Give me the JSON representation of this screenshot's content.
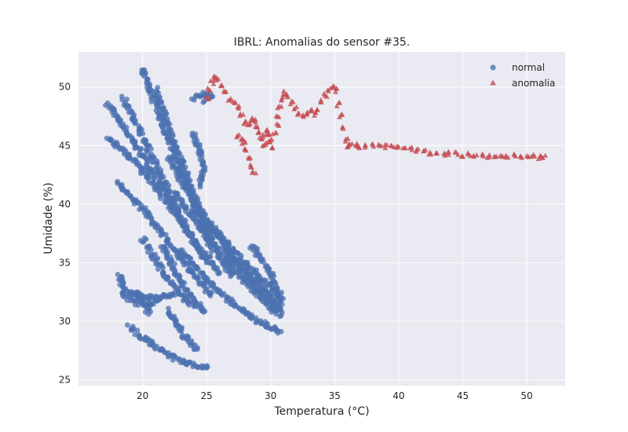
{
  "chart_data": {
    "type": "scatter",
    "title": "IBRL: Anomalias do sensor #35.",
    "xlabel": "Temperatura (°C)",
    "ylabel": "Umidade (%)",
    "xlim": [
      15,
      53
    ],
    "ylim": [
      24.5,
      53
    ],
    "xticks": [
      20,
      25,
      30,
      35,
      40,
      45,
      50
    ],
    "yticks": [
      25,
      30,
      35,
      40,
      45,
      50
    ],
    "grid": true,
    "legend_position": "top-right",
    "colors": {
      "background": "#eaeaf2",
      "grid": "#ffffff",
      "normal": "#4c72b0",
      "anomalia": "#c44e52"
    },
    "series": [
      {
        "name": "normal",
        "marker": "circle",
        "color": "#4c72b0",
        "segments": [
          [
            [
              17.3,
              48.6
            ],
            [
              18.0,
              47.4
            ],
            [
              18.8,
              46.0
            ],
            [
              19.6,
              44.8
            ],
            [
              20.4,
              43.5
            ],
            [
              21.2,
              42.0
            ],
            [
              22.0,
              40.5
            ],
            [
              22.8,
              39.0
            ],
            [
              23.6,
              37.5
            ],
            [
              24.4,
              36.0
            ],
            [
              25.0,
              35.0
            ]
          ],
          [
            [
              17.2,
              45.6
            ],
            [
              18.0,
              45.0
            ],
            [
              19.0,
              44.0
            ],
            [
              20.0,
              42.8
            ],
            [
              21.0,
              41.5
            ],
            [
              22.0,
              40.0
            ],
            [
              23.0,
              38.5
            ],
            [
              24.0,
              37.0
            ],
            [
              25.0,
              35.5
            ],
            [
              26.0,
              34.0
            ]
          ],
          [
            [
              18.0,
              41.8
            ],
            [
              19.0,
              40.8
            ],
            [
              20.0,
              39.6
            ],
            [
              21.0,
              38.2
            ],
            [
              22.0,
              36.8
            ],
            [
              23.0,
              35.4
            ],
            [
              24.0,
              34.0
            ],
            [
              25.0,
              32.8
            ],
            [
              25.4,
              32.0
            ]
          ],
          [
            [
              18.5,
              49.0
            ],
            [
              19.4,
              47.2
            ],
            [
              20.2,
              45.3
            ],
            [
              21.0,
              43.4
            ],
            [
              21.8,
              41.6
            ],
            [
              22.6,
              39.8
            ],
            [
              23.4,
              38.0
            ]
          ],
          [
            [
              20.0,
              51.6
            ],
            [
              20.5,
              50.0
            ],
            [
              21.0,
              48.5
            ],
            [
              21.5,
              47.0
            ],
            [
              22.0,
              45.6
            ],
            [
              22.5,
              44.2
            ],
            [
              23.0,
              42.8
            ],
            [
              23.5,
              41.4
            ],
            [
              24.0,
              40.0
            ],
            [
              24.5,
              38.6
            ],
            [
              25.0,
              37.2
            ],
            [
              25.5,
              36.0
            ]
          ],
          [
            [
              21.0,
              49.8
            ],
            [
              21.6,
              48.0
            ],
            [
              22.2,
              46.2
            ],
            [
              22.8,
              44.4
            ],
            [
              23.4,
              42.6
            ],
            [
              24.0,
              40.8
            ],
            [
              24.6,
              39.0
            ],
            [
              25.2,
              37.4
            ],
            [
              25.8,
              36.0
            ],
            [
              26.4,
              34.8
            ],
            [
              27.0,
              33.8
            ]
          ],
          [
            [
              22.0,
              44.0
            ],
            [
              22.8,
              42.5
            ],
            [
              23.6,
              41.0
            ],
            [
              24.4,
              39.6
            ],
            [
              25.2,
              38.3
            ],
            [
              26.0,
              37.0
            ],
            [
              26.8,
              35.8
            ],
            [
              27.6,
              34.6
            ],
            [
              28.4,
              33.5
            ],
            [
              29.2,
              32.5
            ],
            [
              30.0,
              31.6
            ],
            [
              30.8,
              30.8
            ]
          ],
          [
            [
              22.5,
              41.0
            ],
            [
              23.4,
              39.6
            ],
            [
              24.3,
              38.3
            ],
            [
              25.2,
              37.0
            ],
            [
              26.1,
              35.8
            ],
            [
              27.0,
              34.6
            ],
            [
              27.9,
              33.5
            ],
            [
              28.8,
              32.5
            ],
            [
              29.7,
              31.5
            ],
            [
              30.6,
              30.6
            ]
          ],
          [
            [
              24.0,
              40.0
            ],
            [
              25.0,
              38.6
            ],
            [
              26.0,
              37.4
            ],
            [
              27.0,
              36.2
            ],
            [
              28.0,
              35.0
            ],
            [
              29.0,
              33.9
            ],
            [
              30.0,
              32.9
            ],
            [
              31.0,
              32.0
            ]
          ],
          [
            [
              23.0,
              36.0
            ],
            [
              24.0,
              34.8
            ],
            [
              25.0,
              33.6
            ],
            [
              26.0,
              32.6
            ],
            [
              27.0,
              31.6
            ],
            [
              28.0,
              30.7
            ],
            [
              29.0,
              30.0
            ],
            [
              30.0,
              29.4
            ],
            [
              30.8,
              29.1
            ]
          ],
          [
            [
              18.2,
              34.0
            ],
            [
              18.4,
              33.0
            ],
            [
              18.8,
              32.5
            ],
            [
              19.5,
              32.2
            ],
            [
              20.2,
              32.0
            ],
            [
              21.0,
              32.0
            ],
            [
              21.8,
              32.1
            ],
            [
              22.6,
              32.4
            ]
          ],
          [
            [
              18.4,
              32.5
            ],
            [
              18.8,
              32.0
            ],
            [
              19.4,
              31.6
            ],
            [
              20.0,
              31.4
            ],
            [
              20.8,
              31.6
            ],
            [
              21.6,
              31.9
            ]
          ],
          [
            [
              19.5,
              32.6
            ],
            [
              19.9,
              31.8
            ],
            [
              20.3,
              31.2
            ],
            [
              20.5,
              30.5
            ]
          ],
          [
            [
              19.0,
              29.5
            ],
            [
              19.8,
              28.8
            ],
            [
              20.6,
              28.2
            ],
            [
              21.4,
              27.6
            ],
            [
              22.2,
              27.0
            ],
            [
              23.0,
              26.6
            ],
            [
              23.8,
              26.3
            ],
            [
              24.5,
              26.1
            ],
            [
              25.2,
              26.0
            ]
          ],
          [
            [
              22.0,
              31.0
            ],
            [
              22.6,
              29.8
            ],
            [
              23.2,
              28.8
            ],
            [
              23.8,
              28.0
            ],
            [
              24.4,
              27.6
            ]
          ],
          [
            [
              21.5,
              36.5
            ],
            [
              22.2,
              35.0
            ],
            [
              22.9,
              33.6
            ],
            [
              23.6,
              32.4
            ],
            [
              24.3,
              31.4
            ],
            [
              25.0,
              30.6
            ]
          ],
          [
            [
              20.0,
              37.0
            ],
            [
              20.8,
              35.6
            ],
            [
              21.6,
              34.2
            ],
            [
              22.4,
              33.0
            ],
            [
              23.2,
              32.0
            ],
            [
              24.0,
              31.2
            ]
          ],
          [
            [
              28.5,
              36.5
            ],
            [
              29.2,
              35.4
            ],
            [
              29.9,
              34.3
            ],
            [
              30.4,
              33.0
            ],
            [
              30.7,
              31.6
            ],
            [
              30.8,
              30.4
            ]
          ],
          [
            [
              26.5,
              36.0
            ],
            [
              27.4,
              35.0
            ],
            [
              28.3,
              34.0
            ],
            [
              29.2,
              33.0
            ],
            [
              30.1,
              32.0
            ],
            [
              30.8,
              31.0
            ]
          ],
          [
            [
              24.0,
              49.0
            ],
            [
              24.5,
              49.4
            ],
            [
              25.0,
              49.5
            ],
            [
              25.3,
              49.0
            ],
            [
              24.8,
              48.8
            ]
          ],
          [
            [
              24.0,
              46.0
            ],
            [
              24.5,
              44.5
            ],
            [
              24.8,
              43.0
            ],
            [
              24.4,
              41.5
            ]
          ]
        ]
      },
      {
        "name": "anomalia",
        "marker": "triangle",
        "color": "#c44e52",
        "points": [
          [
            25.0,
            49.0
          ],
          [
            25.2,
            49.8
          ],
          [
            25.4,
            50.4
          ],
          [
            25.6,
            50.8
          ],
          [
            25.9,
            50.6
          ],
          [
            26.2,
            50.2
          ],
          [
            26.5,
            49.6
          ],
          [
            26.8,
            49.0
          ],
          [
            27.1,
            48.6
          ],
          [
            27.4,
            48.2
          ],
          [
            27.7,
            47.6
          ],
          [
            28.0,
            47.0
          ],
          [
            28.3,
            46.8
          ],
          [
            28.5,
            47.3
          ],
          [
            28.7,
            47.1
          ],
          [
            28.9,
            46.6
          ],
          [
            29.1,
            46.0
          ],
          [
            29.3,
            45.5
          ],
          [
            29.5,
            45.8
          ],
          [
            29.7,
            46.3
          ],
          [
            29.9,
            45.9
          ],
          [
            30.1,
            45.4
          ],
          [
            30.3,
            46.0
          ],
          [
            30.5,
            46.8
          ],
          [
            30.6,
            47.6
          ],
          [
            30.7,
            48.3
          ],
          [
            30.9,
            49.0
          ],
          [
            31.1,
            49.5
          ],
          [
            31.3,
            49.2
          ],
          [
            31.6,
            48.7
          ],
          [
            31.9,
            48.2
          ],
          [
            32.2,
            47.8
          ],
          [
            32.5,
            47.5
          ],
          [
            32.8,
            47.8
          ],
          [
            33.1,
            48.1
          ],
          [
            33.4,
            47.7
          ],
          [
            33.7,
            48.2
          ],
          [
            34.0,
            48.8
          ],
          [
            34.3,
            49.3
          ],
          [
            34.6,
            49.8
          ],
          [
            34.9,
            50.1
          ],
          [
            35.1,
            49.7
          ],
          [
            35.3,
            48.5
          ],
          [
            35.5,
            47.5
          ],
          [
            35.7,
            46.5
          ],
          [
            35.9,
            45.5
          ],
          [
            36.0,
            44.9
          ],
          [
            36.3,
            45.2
          ],
          [
            36.6,
            45.0
          ],
          [
            37.0,
            44.9
          ],
          [
            37.5,
            45.0
          ],
          [
            38.0,
            45.0
          ],
          [
            38.5,
            45.0
          ],
          [
            39.0,
            44.9
          ],
          [
            39.5,
            44.9
          ],
          [
            40.0,
            44.8
          ],
          [
            40.5,
            44.8
          ],
          [
            41.0,
            44.7
          ],
          [
            41.5,
            44.6
          ],
          [
            42.0,
            44.5
          ],
          [
            42.5,
            44.4
          ],
          [
            43.0,
            44.4
          ],
          [
            43.5,
            44.3
          ],
          [
            44.0,
            44.3
          ],
          [
            44.5,
            44.3
          ],
          [
            45.0,
            44.2
          ],
          [
            45.5,
            44.2
          ],
          [
            46.0,
            44.2
          ],
          [
            46.5,
            44.2
          ],
          [
            47.0,
            44.1
          ],
          [
            47.5,
            44.1
          ],
          [
            48.0,
            44.1
          ],
          [
            48.5,
            44.1
          ],
          [
            49.0,
            44.1
          ],
          [
            49.5,
            44.1
          ],
          [
            50.0,
            44.1
          ],
          [
            50.5,
            44.1
          ],
          [
            51.0,
            44.0
          ],
          [
            51.3,
            44.0
          ],
          [
            28.3,
            44.0
          ],
          [
            28.5,
            43.3
          ],
          [
            28.7,
            42.8
          ],
          [
            28.1,
            44.6
          ],
          [
            27.9,
            45.2
          ],
          [
            27.7,
            45.6
          ],
          [
            27.5,
            45.8
          ],
          [
            29.5,
            45.0
          ],
          [
            29.8,
            45.4
          ],
          [
            30.0,
            44.8
          ]
        ]
      }
    ]
  }
}
